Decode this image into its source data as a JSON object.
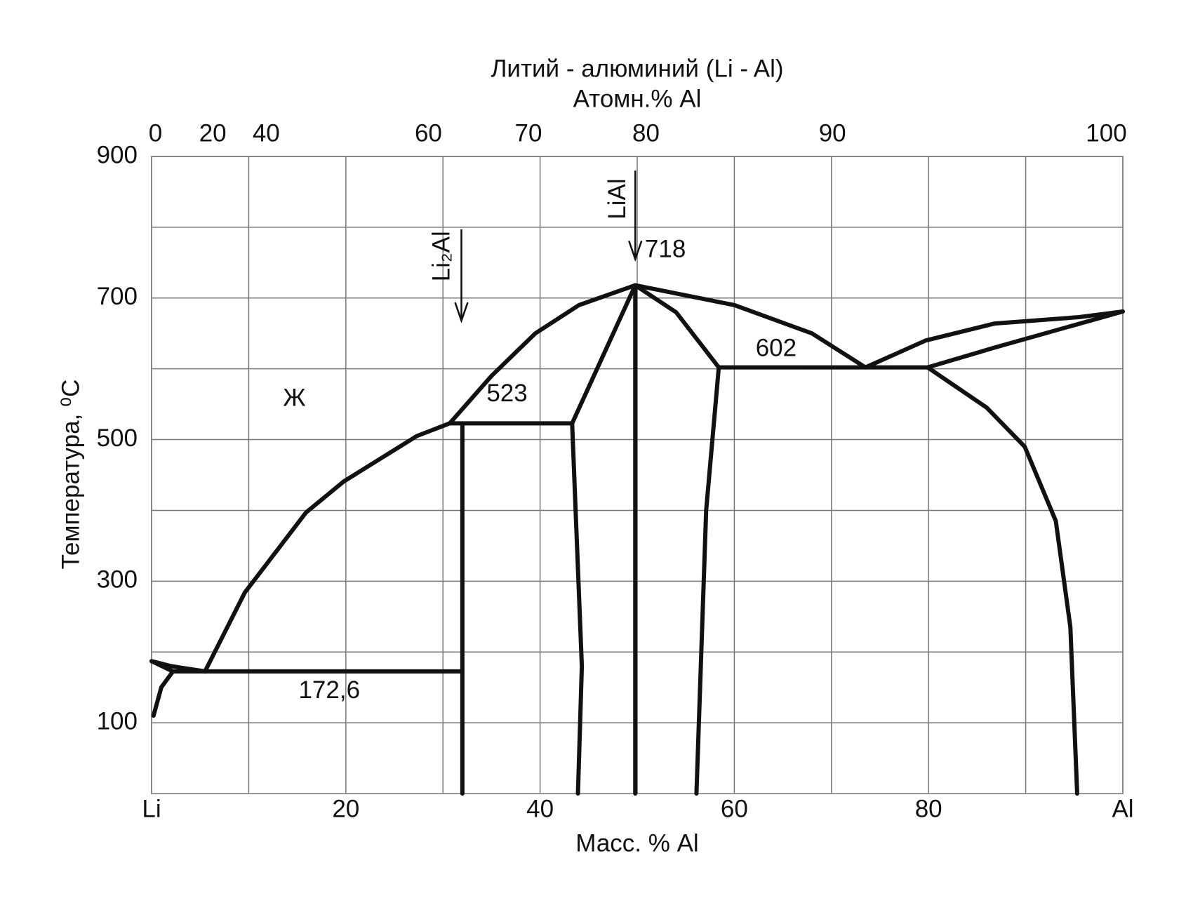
{
  "chart_data": {
    "type": "line",
    "title": "Литий - алюминий (Li - Al)",
    "x2_label": "Атомн.% Al",
    "x_label": "Масс. % Al",
    "y_label": "Температура, ⁰C",
    "xlim": [
      0,
      100
    ],
    "ylim": [
      0,
      900
    ],
    "xticks": [
      {
        "value": 0,
        "label": "Li"
      },
      20,
      40,
      60,
      80,
      {
        "value": 100,
        "label": "Al"
      }
    ],
    "xminor": [
      10,
      30,
      50,
      70,
      90
    ],
    "yticks": [
      100,
      300,
      500,
      700,
      900
    ],
    "yminor": [
      200,
      400,
      600,
      800
    ],
    "x2ticks": [
      {
        "value": 0,
        "mass": 0.4
      },
      {
        "value": 20,
        "mass": 6.3
      },
      {
        "value": 40,
        "mass": 11.8
      },
      {
        "value": 60,
        "mass": 28.5
      },
      {
        "value": 70,
        "mass": 38.8
      },
      {
        "value": 80,
        "mass": 50.9
      },
      {
        "value": 90,
        "mass": 70.1
      },
      {
        "value": 100,
        "mass": 98.3
      }
    ],
    "grid": true,
    "color": "#111111",
    "series": [
      {
        "x": [
          0,
          2,
          5.5
        ],
        "values": [
          187,
          180,
          172.6
        ]
      },
      {
        "x": [
          0,
          2.2
        ],
        "values": [
          187,
          172.6
        ]
      },
      {
        "x": [
          0.2,
          1,
          2.2
        ],
        "values": [
          110,
          150,
          172.6
        ]
      },
      {
        "x": [
          2.2,
          32
        ],
        "values": [
          172.6,
          172.6
        ]
      },
      {
        "x": [
          5.5,
          9.6,
          15.9,
          19.8,
          27.3,
          30.7
        ],
        "values": [
          172.6,
          284,
          397,
          441,
          505,
          523
        ]
      },
      {
        "x": [
          30.7,
          43.3
        ],
        "values": [
          523,
          523
        ]
      },
      {
        "x": [
          32,
          32
        ],
        "values": [
          523,
          0
        ]
      },
      {
        "x": [
          30.7,
          35,
          39.5,
          44,
          49.8
        ],
        "values": [
          523,
          590,
          650,
          690,
          718
        ]
      },
      {
        "x": [
          43.3,
          49.8
        ],
        "values": [
          523,
          718
        ]
      },
      {
        "x": [
          43.3,
          44.3,
          43.9
        ],
        "values": [
          523,
          180,
          0
        ]
      },
      {
        "x": [
          49.8,
          49.8
        ],
        "values": [
          718,
          0
        ]
      },
      {
        "x": [
          49.8,
          54,
          58.4,
          57.1,
          56.1
        ],
        "values": [
          718,
          680,
          602,
          400,
          0
        ]
      },
      {
        "x": [
          49.8,
          60,
          68,
          73.5
        ],
        "values": [
          718,
          690,
          650,
          602
        ]
      },
      {
        "x": [
          58.4,
          79.9
        ],
        "values": [
          602,
          602
        ]
      },
      {
        "x": [
          73.5,
          79.7,
          86.8,
          95.5,
          100
        ],
        "values": [
          602,
          640,
          664,
          673,
          681
        ]
      },
      {
        "x": [
          79.9,
          86.8,
          100
        ],
        "values": [
          602,
          630,
          681
        ]
      },
      {
        "x": [
          79.9,
          86,
          89.9,
          93.1,
          94.6,
          95.3
        ],
        "values": [
          602,
          545,
          490,
          385,
          235,
          0
        ]
      }
    ],
    "annotations": [
      {
        "text": "Ж"
      },
      {
        "text": "523"
      },
      {
        "text": "718"
      },
      {
        "text": "602"
      },
      {
        "text": "172,6"
      }
    ],
    "compounds": [
      {
        "label": "LiAl"
      },
      {
        "label": "Li₂Al"
      }
    ]
  }
}
